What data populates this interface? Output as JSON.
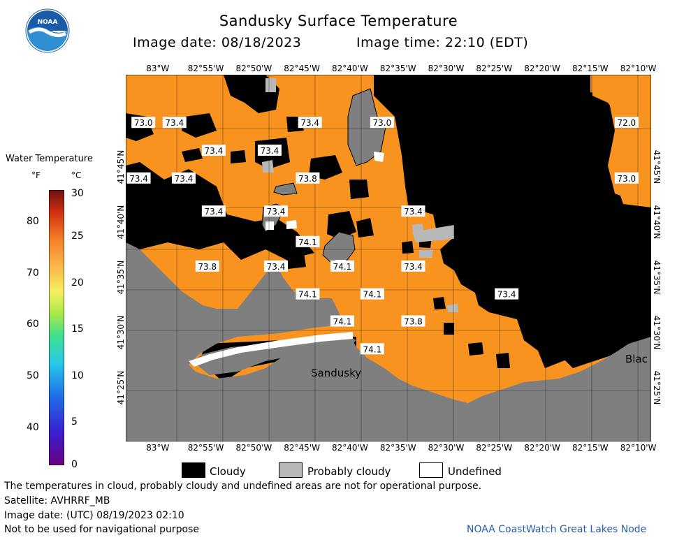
{
  "title": "Sandusky Surface Temperature",
  "image_date_label": "Image date: 08/18/2023",
  "image_time_label": "Image time: 22:10 (EDT)",
  "logo_text": "NOAA",
  "lon_ticks": [
    "83°W",
    "82°55'W",
    "82°50'W",
    "82°45'W",
    "82°40'W",
    "82°35'W",
    "82°30'W",
    "82°25'W",
    "82°20'W",
    "82°15'W",
    "82°10'W"
  ],
  "lat_ticks": [
    "41°45'N",
    "41°40'N",
    "41°35'N",
    "41°30'N",
    "41°25'N"
  ],
  "legend": {
    "title": "Water Temperature",
    "unit_f": "°F",
    "unit_c": "°C",
    "f_ticks": [
      "80",
      "70",
      "60",
      "50",
      "40"
    ],
    "c_ticks": [
      "30",
      "25",
      "20",
      "15",
      "10",
      "5",
      "0"
    ]
  },
  "place_labels": [
    "Sandusky",
    "Blac"
  ],
  "temperature_labels": [
    {
      "text": "73.0",
      "lon": -83.025,
      "lat": 41.817
    },
    {
      "text": "73.4",
      "lon": -82.971,
      "lat": 41.817
    },
    {
      "text": "73.4",
      "lon": -82.736,
      "lat": 41.817
    },
    {
      "text": "73.0",
      "lon": -82.611,
      "lat": 41.817
    },
    {
      "text": "72.0",
      "lon": -82.187,
      "lat": 41.817
    },
    {
      "text": "73.4",
      "lon": -82.903,
      "lat": 41.775
    },
    {
      "text": "73.4",
      "lon": -82.806,
      "lat": 41.775
    },
    {
      "text": "73.4",
      "lon": -83.033,
      "lat": 41.733
    },
    {
      "text": "73.4",
      "lon": -82.955,
      "lat": 41.733
    },
    {
      "text": "73.8",
      "lon": -82.74,
      "lat": 41.733
    },
    {
      "text": "73.0",
      "lon": -82.187,
      "lat": 41.733
    },
    {
      "text": "73.4",
      "lon": -82.903,
      "lat": 41.683
    },
    {
      "text": "73.4",
      "lon": -82.795,
      "lat": 41.683
    },
    {
      "text": "73.4",
      "lon": -82.557,
      "lat": 41.683
    },
    {
      "text": "74.1",
      "lon": -82.74,
      "lat": 41.637
    },
    {
      "text": "73.8",
      "lon": -82.914,
      "lat": 41.6
    },
    {
      "text": "73.4",
      "lon": -82.795,
      "lat": 41.6
    },
    {
      "text": "74.1",
      "lon": -82.68,
      "lat": 41.6
    },
    {
      "text": "73.4",
      "lon": -82.557,
      "lat": 41.6
    },
    {
      "text": "74.1",
      "lon": -82.74,
      "lat": 41.558
    },
    {
      "text": "74.1",
      "lon": -82.628,
      "lat": 41.558
    },
    {
      "text": "73.4",
      "lon": -82.395,
      "lat": 41.558
    },
    {
      "text": "74.1",
      "lon": -82.68,
      "lat": 41.517
    },
    {
      "text": "73.8",
      "lon": -82.557,
      "lat": 41.517
    },
    {
      "text": "74.1",
      "lon": -82.628,
      "lat": 41.475
    }
  ],
  "colors": {
    "water": "#f7931e",
    "cloud": "#000000",
    "probably_cloudy": "#b8b8b8",
    "land": "#7f7f7f",
    "undefined": "#ffffff",
    "credit": "#2a5db0"
  },
  "key": {
    "cloudy": "Cloudy",
    "probably_cloudy": "Probably cloudy",
    "undefined": "Undefined"
  },
  "footer": {
    "line1": "The temperatures in cloud, probably cloudy and undefined areas are not for operational purpose.",
    "line2": "Satellite: AVHRRF_MB",
    "line3": "Image date: (UTC) 08/19/2023  02:10",
    "line4": "Not to be used for navigational purpose",
    "credit": "NOAA CoastWatch Great Lakes Node"
  }
}
